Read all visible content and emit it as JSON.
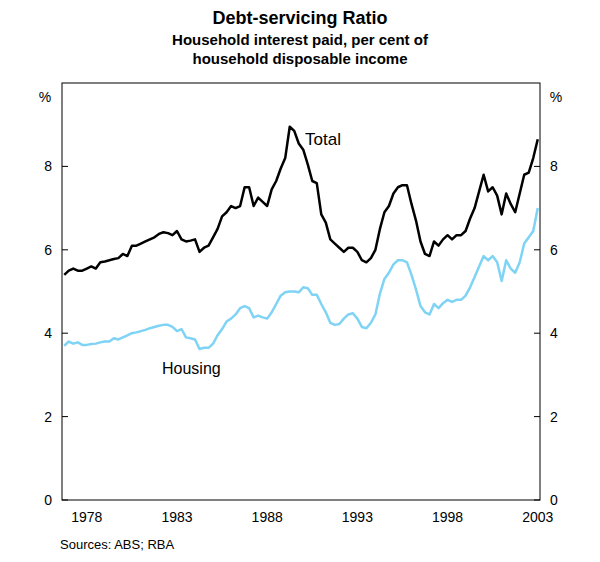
{
  "chart_data": {
    "type": "line",
    "title": "Debt-servicing Ratio",
    "subtitle": "Household interest paid, per cent of household disposable income",
    "ylabel": "%",
    "source": "Sources: ABS; RBA",
    "categories": [
      null,
      null,
      null,
      null,
      null,
      "1978",
      null,
      null,
      null,
      null,
      null,
      null,
      null,
      null,
      null,
      null,
      null,
      null,
      null,
      null,
      null,
      null,
      null,
      null,
      null,
      "1983",
      null,
      null,
      null,
      null,
      null,
      null,
      null,
      null,
      null,
      null,
      null,
      null,
      null,
      null,
      null,
      null,
      null,
      null,
      null,
      "1988",
      null,
      null,
      null,
      null,
      null,
      null,
      null,
      null,
      null,
      null,
      null,
      null,
      null,
      null,
      null,
      null,
      null,
      null,
      null,
      "1993",
      null,
      null,
      null,
      null,
      null,
      null,
      null,
      null,
      null,
      null,
      null,
      null,
      null,
      null,
      null,
      null,
      null,
      null,
      null,
      "1998",
      null,
      null,
      null,
      null,
      null,
      null,
      null,
      null,
      null,
      null,
      null,
      null,
      null,
      null,
      null,
      null,
      null,
      null,
      null,
      "2003"
    ],
    "series": [
      {
        "name": "Total",
        "color": "#000000",
        "values": [
          5.4,
          5.5,
          5.55,
          5.5,
          5.5,
          5.55,
          5.6,
          5.55,
          5.7,
          5.72,
          5.75,
          5.78,
          5.8,
          5.9,
          5.85,
          6.1,
          6.1,
          6.15,
          6.2,
          6.25,
          6.3,
          6.38,
          6.42,
          6.4,
          6.35,
          6.45,
          6.25,
          6.2,
          6.22,
          6.25,
          5.95,
          6.05,
          6.1,
          6.3,
          6.5,
          6.8,
          6.9,
          7.05,
          7.0,
          7.05,
          7.5,
          7.5,
          7.05,
          7.25,
          7.15,
          7.05,
          7.45,
          7.65,
          7.95,
          8.2,
          8.95,
          8.85,
          8.55,
          8.4,
          8.05,
          7.65,
          7.6,
          6.85,
          6.65,
          6.25,
          6.15,
          6.05,
          5.95,
          6.05,
          6.05,
          5.95,
          5.75,
          5.7,
          5.8,
          6.0,
          6.5,
          6.9,
          7.05,
          7.35,
          7.5,
          7.55,
          7.55,
          7.1,
          6.7,
          6.2,
          5.9,
          5.85,
          6.2,
          6.1,
          6.25,
          6.35,
          6.25,
          6.35,
          6.35,
          6.45,
          6.75,
          7.0,
          7.4,
          7.8,
          7.4,
          7.5,
          7.3,
          6.85,
          7.35,
          7.1,
          6.9,
          7.35,
          7.8,
          7.85,
          8.2,
          8.65
        ]
      },
      {
        "name": "Housing",
        "color": "#7fd3f5",
        "values": [
          3.7,
          3.8,
          3.75,
          3.78,
          3.72,
          3.72,
          3.74,
          3.75,
          3.78,
          3.8,
          3.8,
          3.88,
          3.85,
          3.9,
          3.95,
          4.0,
          4.02,
          4.05,
          4.08,
          4.12,
          4.15,
          4.18,
          4.2,
          4.2,
          4.15,
          4.05,
          4.1,
          3.9,
          3.88,
          3.85,
          3.62,
          3.65,
          3.65,
          3.75,
          3.95,
          4.1,
          4.28,
          4.35,
          4.45,
          4.6,
          4.65,
          4.6,
          4.38,
          4.42,
          4.38,
          4.35,
          4.5,
          4.7,
          4.9,
          4.98,
          5.0,
          5.0,
          4.98,
          5.1,
          5.08,
          4.92,
          4.92,
          4.7,
          4.5,
          4.25,
          4.2,
          4.22,
          4.35,
          4.45,
          4.48,
          4.35,
          4.15,
          4.12,
          4.25,
          4.45,
          4.95,
          5.3,
          5.45,
          5.65,
          5.75,
          5.75,
          5.7,
          5.4,
          5.05,
          4.65,
          4.5,
          4.45,
          4.7,
          4.6,
          4.72,
          4.8,
          4.75,
          4.8,
          4.8,
          4.9,
          5.1,
          5.35,
          5.6,
          5.85,
          5.75,
          5.85,
          5.7,
          5.25,
          5.75,
          5.55,
          5.45,
          5.7,
          6.15,
          6.3,
          6.45,
          7.0
        ]
      }
    ],
    "ylim": [
      0,
      10
    ],
    "yticks": [
      0,
      2,
      4,
      6,
      8
    ],
    "grid": false
  }
}
